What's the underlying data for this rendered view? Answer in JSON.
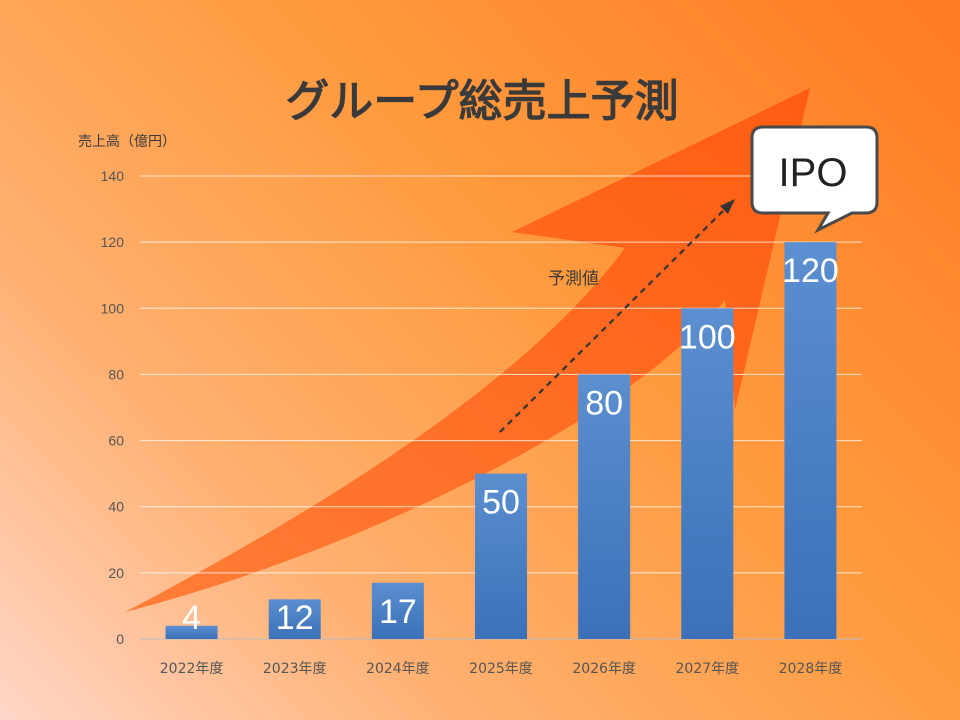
{
  "chart_data": {
    "type": "bar",
    "title": "グループ総売上予測",
    "ylabel": "売上高（億円）",
    "xlabel": "",
    "categories": [
      "2022年度",
      "2023年度",
      "2024年度",
      "2025年度",
      "2026年度",
      "2027年度",
      "2028年度"
    ],
    "values": [
      4,
      12,
      17,
      50,
      80,
      100,
      120
    ],
    "ylim": [
      0,
      140
    ],
    "yticks": [
      0,
      20,
      40,
      60,
      80,
      100,
      120,
      140
    ],
    "grid": true,
    "bar_color": "#4a7fc4",
    "forecast_annotation": "予測値",
    "callout": "IPO",
    "arrow_color": "#ff6a1a"
  }
}
